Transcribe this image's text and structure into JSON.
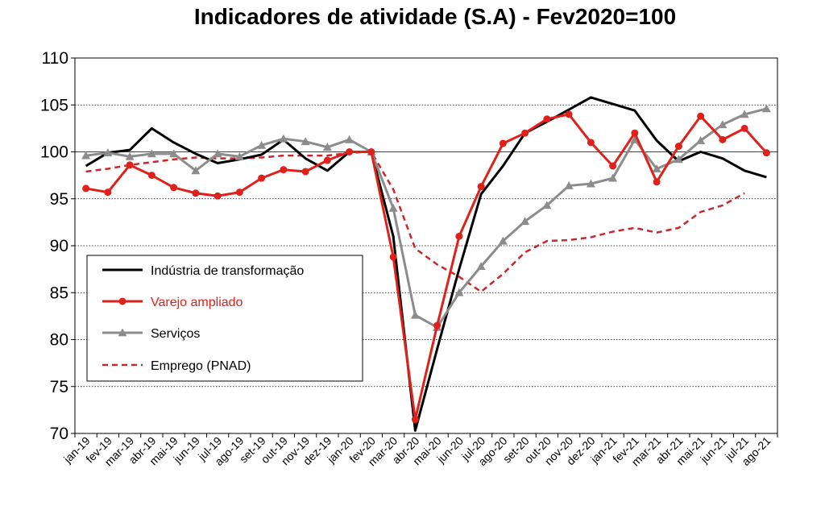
{
  "chart_data": {
    "type": "line",
    "title": "Indicadores de atividade (S.A) - Fev2020=100",
    "xlabel": "",
    "ylabel": "",
    "ylim": [
      70,
      110
    ],
    "yticks": [
      70,
      75,
      80,
      85,
      90,
      95,
      100,
      105,
      110
    ],
    "grid": "horizontal",
    "legend_position": "left",
    "categories": [
      "jan-19",
      "fev-19",
      "mar-19",
      "abr-19",
      "mai-19",
      "jun-19",
      "jul-19",
      "ago-19",
      "set-19",
      "out-19",
      "nov-19",
      "dez-19",
      "jan-20",
      "fev-20",
      "mar-20",
      "abr-20",
      "mai-20",
      "jun-20",
      "jul-20",
      "ago-20",
      "set-20",
      "out-20",
      "nov-20",
      "dez-20",
      "jan-21",
      "fev-21",
      "mar-21",
      "abr-21",
      "mai-21",
      "jun-21",
      "jul-21",
      "ago-21"
    ],
    "series": [
      {
        "name": "Indústria de transformação",
        "color": "#000000",
        "style": "solid",
        "marker": "none",
        "values": [
          98.5,
          99.9,
          100.2,
          102.5,
          101.0,
          99.8,
          98.8,
          99.2,
          99.7,
          101.3,
          99.3,
          98.0,
          100.0,
          100.0,
          91.0,
          70.3,
          79.0,
          87.5,
          95.5,
          98.5,
          102.0,
          103.2,
          104.5,
          105.8,
          105.1,
          104.4,
          101.2,
          99.0,
          100.0,
          99.3,
          98.0,
          97.3
        ]
      },
      {
        "name": "Varejo ampliado",
        "color": "#e0201b",
        "style": "solid",
        "marker": "circle",
        "values": [
          96.1,
          95.7,
          98.6,
          97.5,
          96.2,
          95.6,
          95.3,
          95.7,
          97.2,
          98.1,
          97.9,
          99.1,
          100.0,
          100.0,
          88.8,
          71.5,
          81.5,
          91.0,
          96.3,
          100.9,
          102.0,
          103.5,
          104.0,
          101.0,
          98.5,
          102.0,
          96.8,
          100.6,
          103.8,
          101.3,
          102.5,
          99.9
        ]
      },
      {
        "name": "Serviços",
        "color": "#8c8c8c",
        "style": "solid",
        "marker": "triangle",
        "values": [
          99.6,
          99.9,
          99.5,
          99.8,
          99.8,
          98.0,
          99.8,
          99.5,
          100.7,
          101.4,
          101.1,
          100.5,
          101.3,
          100.0,
          94.0,
          82.6,
          81.3,
          85.0,
          87.8,
          90.5,
          92.6,
          94.3,
          96.4,
          96.6,
          97.2,
          101.3,
          98.2,
          99.2,
          101.2,
          102.9,
          104.0,
          104.6
        ]
      },
      {
        "name": "Emprego (PNAD)",
        "color": "#c8282d",
        "style": "dashed",
        "marker": "none",
        "values": [
          97.9,
          98.2,
          98.6,
          98.9,
          99.2,
          99.4,
          99.3,
          99.3,
          99.4,
          99.6,
          99.6,
          99.6,
          99.9,
          100.0,
          96.0,
          89.7,
          88.0,
          86.7,
          85.1,
          87.0,
          89.3,
          90.5,
          90.6,
          90.9,
          91.5,
          91.9,
          91.4,
          91.9,
          93.6,
          94.3,
          95.6,
          null
        ]
      }
    ]
  }
}
